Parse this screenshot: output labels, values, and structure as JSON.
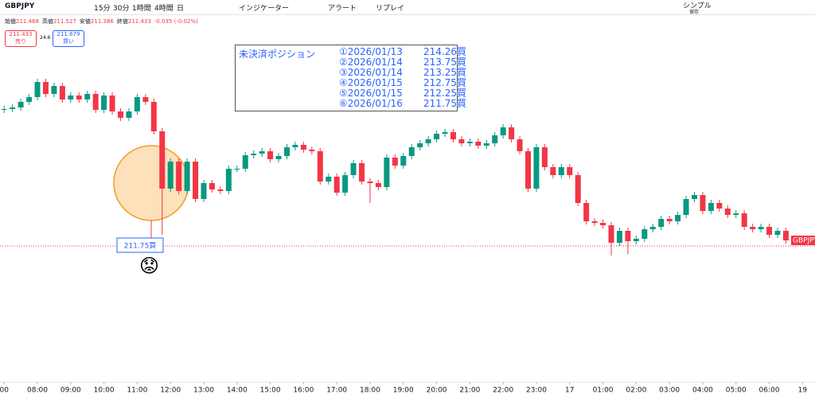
{
  "toolbar": {
    "symbol": "GBPJPY",
    "intervals": [
      "15分",
      "30分",
      "1時間",
      "4時間",
      "日"
    ],
    "indicators": "インジケーター",
    "alert": "アラート",
    "replay": "リプレイ",
    "layout": "シンプル",
    "layout_sub": "保存"
  },
  "legend": {
    "ohlc": [
      {
        "label": "始値",
        "value": "211.468"
      },
      {
        "label": "高値",
        "value": "211.527"
      },
      {
        "label": "安値",
        "value": "211.386"
      },
      {
        "label": "終値",
        "value": "211.433"
      }
    ],
    "change": "-0.035 (-0.02%)",
    "sell_price": "211.433",
    "sell_label": "売り",
    "spread": "24.6",
    "buy_price": "211.679",
    "buy_label": "買い"
  },
  "annotation": {
    "title": "未決済ポジション",
    "positions": [
      {
        "date": "①2026/01/13",
        "price": "214.26買"
      },
      {
        "date": "②2026/01/14",
        "price": "213.75買"
      },
      {
        "date": "③2026/01/14",
        "price": "213.25買"
      },
      {
        "date": "④2026/01/15",
        "price": "212.75買"
      },
      {
        "date": "⑤2026/01/15",
        "price": "212.25買"
      },
      {
        "date": "⑥2026/01/16",
        "price": "211.75買"
      }
    ],
    "emoji": "😟"
  },
  "chart_data": {
    "type": "candlestick",
    "symbol_label": "GBPJPY",
    "up_color": "#089981",
    "down_color": "#f23645",
    "ylim": [
      210.895,
      213.185
    ],
    "xlim": [
      -0.5,
      97.5
    ],
    "price_line": {
      "value": 211.75,
      "label": "211.75買"
    },
    "xticks": [
      {
        "value": 0,
        "label": "00"
      },
      {
        "value": 4,
        "label": "08:00"
      },
      {
        "value": 8,
        "label": "09:00"
      },
      {
        "value": 12,
        "label": "10:00"
      },
      {
        "value": 16,
        "label": "11:00"
      },
      {
        "value": 20,
        "label": "12:00"
      },
      {
        "value": 24,
        "label": "13:00"
      },
      {
        "value": 28,
        "label": "14:00"
      },
      {
        "value": 32,
        "label": "15:00"
      },
      {
        "value": 36,
        "label": "16:00"
      },
      {
        "value": 40,
        "label": "17:00"
      },
      {
        "value": 44,
        "label": "18:00"
      },
      {
        "value": 48,
        "label": "19:00"
      },
      {
        "value": 52,
        "label": "20:00"
      },
      {
        "value": 56,
        "label": "21:00"
      },
      {
        "value": 60,
        "label": "22:00"
      },
      {
        "value": 64,
        "label": "23:00"
      },
      {
        "value": 68,
        "label": "17"
      },
      {
        "value": 72,
        "label": "01:00"
      },
      {
        "value": 76,
        "label": "02:00"
      },
      {
        "value": 80,
        "label": "03:00"
      },
      {
        "value": 84,
        "label": "04:00"
      },
      {
        "value": 88,
        "label": "05:00"
      },
      {
        "value": 92,
        "label": "06:00"
      },
      {
        "value": 96,
        "label": "19"
      }
    ],
    "open": [
      212.605,
      212.61,
      212.62,
      212.655,
      212.685,
      212.78,
      212.705,
      212.755,
      212.67,
      212.695,
      212.67,
      212.705,
      212.605,
      212.695,
      212.595,
      212.555,
      212.595,
      212.685,
      212.655,
      212.47,
      212.11,
      212.28,
      212.095,
      212.28,
      212.045,
      212.145,
      212.105,
      212.095,
      212.235,
      212.235,
      212.32,
      212.33,
      212.345,
      212.295,
      212.315,
      212.37,
      212.385,
      212.355,
      212.345,
      212.155,
      212.185,
      212.085,
      212.195,
      212.27,
      212.155,
      212.145,
      212.12,
      212.305,
      212.255,
      212.315,
      212.37,
      212.395,
      212.42,
      212.455,
      212.465,
      212.42,
      212.395,
      212.405,
      212.38,
      212.395,
      212.445,
      212.495,
      212.42,
      212.345,
      212.11,
      212.37,
      212.245,
      212.195,
      212.245,
      212.195,
      212.02,
      211.905,
      211.895,
      211.88,
      211.77,
      211.845,
      211.78,
      211.795,
      211.855,
      211.87,
      211.92,
      211.905,
      211.945,
      212.045,
      212.07,
      211.97,
      212.02,
      211.985,
      211.945,
      211.955,
      211.87,
      211.855,
      211.87,
      211.82,
      211.845
    ],
    "high": [
      212.63,
      212.64,
      212.675,
      212.705,
      212.8,
      212.8,
      212.775,
      212.775,
      212.715,
      212.715,
      212.725,
      212.725,
      212.715,
      212.715,
      212.615,
      212.615,
      212.705,
      212.705,
      212.675,
      212.49,
      212.3,
      212.3,
      212.3,
      212.3,
      212.165,
      212.165,
      212.125,
      212.255,
      212.255,
      212.34,
      212.35,
      212.365,
      212.365,
      212.335,
      212.39,
      212.405,
      212.405,
      212.375,
      212.365,
      212.205,
      212.205,
      212.215,
      212.29,
      212.29,
      212.175,
      212.165,
      212.325,
      212.325,
      212.335,
      212.39,
      212.415,
      212.44,
      212.475,
      212.485,
      212.485,
      212.44,
      212.425,
      212.425,
      212.415,
      212.465,
      212.515,
      212.515,
      212.44,
      212.365,
      212.39,
      212.39,
      212.265,
      212.265,
      212.265,
      212.215,
      212.04,
      211.925,
      211.915,
      211.9,
      211.865,
      211.865,
      211.815,
      211.875,
      211.89,
      211.94,
      211.94,
      211.965,
      212.065,
      212.09,
      212.09,
      212.04,
      212.04,
      212.005,
      211.975,
      211.975,
      211.89,
      211.89,
      211.89,
      211.865,
      211.865
    ],
    "low": [
      212.585,
      212.59,
      212.6,
      212.635,
      212.665,
      212.685,
      212.685,
      212.65,
      212.65,
      212.65,
      212.65,
      212.585,
      212.585,
      212.575,
      212.535,
      212.535,
      212.575,
      212.635,
      212.45,
      211.82,
      212.09,
      212.075,
      212.075,
      212.025,
      212.025,
      212.085,
      212.075,
      212.075,
      212.215,
      212.215,
      212.3,
      212.31,
      212.275,
      212.275,
      212.295,
      212.35,
      212.335,
      212.325,
      212.135,
      212.135,
      212.065,
      212.065,
      212.175,
      212.135,
      212.02,
      212.1,
      212.1,
      212.235,
      212.235,
      212.295,
      212.35,
      212.375,
      212.4,
      212.435,
      212.4,
      212.375,
      212.375,
      212.36,
      212.36,
      212.375,
      212.425,
      212.4,
      212.325,
      212.09,
      212.09,
      212.225,
      212.175,
      212.175,
      212.175,
      212.0,
      211.885,
      211.875,
      211.86,
      211.69,
      211.75,
      211.7,
      211.76,
      211.775,
      211.835,
      211.85,
      211.885,
      211.885,
      211.925,
      212.025,
      211.95,
      211.95,
      211.965,
      211.925,
      211.925,
      211.85,
      211.835,
      211.835,
      211.8,
      211.8,
      211.765
    ],
    "close": [
      212.61,
      212.62,
      212.655,
      212.685,
      212.78,
      212.705,
      212.755,
      212.67,
      212.695,
      212.67,
      212.705,
      212.605,
      212.695,
      212.595,
      212.555,
      212.595,
      212.685,
      212.655,
      212.47,
      212.11,
      212.28,
      212.095,
      212.28,
      212.045,
      212.145,
      212.105,
      212.095,
      212.235,
      212.235,
      212.32,
      212.33,
      212.345,
      212.295,
      212.315,
      212.37,
      212.385,
      212.355,
      212.345,
      212.155,
      212.185,
      212.085,
      212.195,
      212.27,
      212.155,
      212.145,
      212.12,
      212.305,
      212.255,
      212.315,
      212.37,
      212.395,
      212.42,
      212.455,
      212.465,
      212.42,
      212.395,
      212.405,
      212.38,
      212.395,
      212.445,
      212.495,
      212.42,
      212.345,
      212.11,
      212.37,
      212.245,
      212.195,
      212.245,
      212.195,
      212.02,
      211.905,
      211.895,
      211.88,
      211.77,
      211.845,
      211.78,
      211.795,
      211.855,
      211.87,
      211.92,
      211.905,
      211.945,
      212.045,
      212.07,
      211.97,
      212.02,
      211.985,
      211.945,
      211.955,
      211.87,
      211.855,
      211.87,
      211.82,
      211.845,
      211.785
    ]
  }
}
